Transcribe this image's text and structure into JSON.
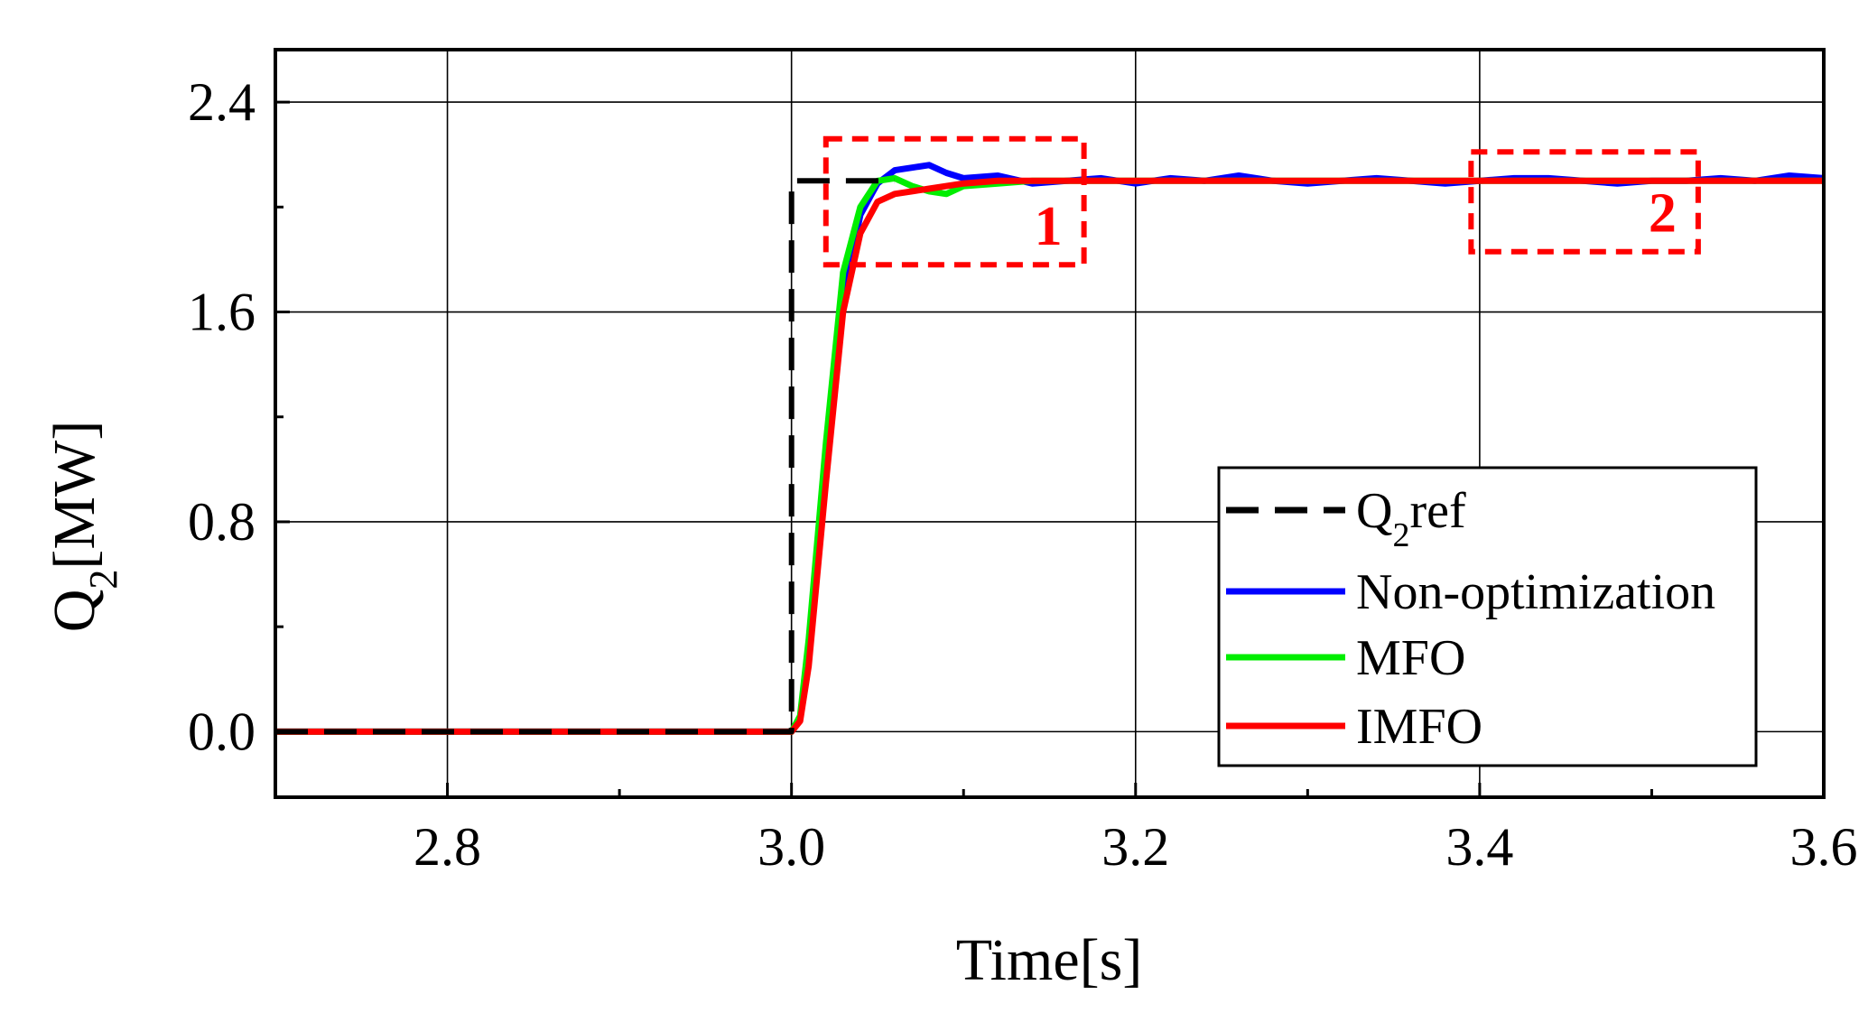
{
  "chart_data": {
    "type": "line",
    "xlabel": "Time[s]",
    "ylabel": {
      "base": "Q",
      "sub": "2",
      "rest": "[MW]"
    },
    "xlim": [
      2.7,
      3.6
    ],
    "ylim": [
      -0.25,
      2.6
    ],
    "xticks": [
      2.8,
      3.0,
      3.2,
      3.4,
      3.6
    ],
    "xtick_labels": [
      "2.8",
      "3.0",
      "3.2",
      "3.4",
      "3.6"
    ],
    "xminor": [
      2.9,
      3.1,
      3.3,
      3.5
    ],
    "yticks": [
      0.0,
      0.8,
      1.6,
      2.4
    ],
    "ytick_labels": [
      "0.0",
      "0.8",
      "1.6",
      "2.4"
    ],
    "yminor": [
      0.4,
      1.2,
      2.0
    ],
    "grid": true,
    "legend_position": "bottom-right",
    "series": [
      {
        "name": "Q2ref",
        "legend": {
          "base": "Q",
          "sub": "2",
          "rest": "ref"
        },
        "color": "#000000",
        "style": "dashed",
        "x": [
          2.7,
          3.0,
          3.0,
          3.06
        ],
        "y": [
          0.0,
          0.0,
          2.1,
          2.1
        ]
      },
      {
        "name": "Non-optimization",
        "legend": {
          "base": "Non-optimization",
          "sub": "",
          "rest": ""
        },
        "color": "#0000ff",
        "style": "solid",
        "x": [
          2.7,
          2.9,
          3.0,
          3.005,
          3.01,
          3.02,
          3.03,
          3.04,
          3.05,
          3.06,
          3.07,
          3.08,
          3.09,
          3.1,
          3.12,
          3.14,
          3.16,
          3.18,
          3.2,
          3.22,
          3.24,
          3.26,
          3.28,
          3.3,
          3.32,
          3.34,
          3.36,
          3.38,
          3.4,
          3.42,
          3.44,
          3.46,
          3.48,
          3.5,
          3.52,
          3.54,
          3.56,
          3.58,
          3.6
        ],
        "y": [
          0.0,
          0.0,
          0.0,
          0.05,
          0.3,
          1.0,
          1.65,
          1.97,
          2.09,
          2.14,
          2.15,
          2.16,
          2.13,
          2.11,
          2.12,
          2.09,
          2.1,
          2.11,
          2.09,
          2.11,
          2.1,
          2.12,
          2.1,
          2.09,
          2.1,
          2.11,
          2.1,
          2.09,
          2.1,
          2.11,
          2.11,
          2.1,
          2.09,
          2.1,
          2.1,
          2.11,
          2.1,
          2.12,
          2.11
        ]
      },
      {
        "name": "MFO",
        "legend": {
          "base": "MFO",
          "sub": "",
          "rest": ""
        },
        "color": "#00ee00",
        "style": "solid",
        "x": [
          2.7,
          2.9,
          3.0,
          3.005,
          3.01,
          3.02,
          3.03,
          3.04,
          3.05,
          3.06,
          3.07,
          3.08,
          3.09,
          3.1,
          3.12,
          3.14,
          3.2,
          3.3,
          3.4,
          3.5,
          3.6
        ],
        "y": [
          0.0,
          0.0,
          0.0,
          0.06,
          0.35,
          1.1,
          1.75,
          2.0,
          2.1,
          2.11,
          2.08,
          2.06,
          2.05,
          2.08,
          2.09,
          2.1,
          2.1,
          2.1,
          2.1,
          2.1,
          2.1
        ]
      },
      {
        "name": "IMFO",
        "legend": {
          "base": "IMFO",
          "sub": "",
          "rest": ""
        },
        "color": "#ff0000",
        "style": "solid",
        "x": [
          2.7,
          2.9,
          3.0,
          3.005,
          3.01,
          3.02,
          3.03,
          3.04,
          3.05,
          3.06,
          3.07,
          3.08,
          3.09,
          3.1,
          3.12,
          3.14,
          3.2,
          3.3,
          3.4,
          3.5,
          3.6
        ],
        "y": [
          0.0,
          0.0,
          0.0,
          0.04,
          0.25,
          0.95,
          1.6,
          1.9,
          2.02,
          2.05,
          2.06,
          2.07,
          2.08,
          2.09,
          2.1,
          2.1,
          2.1,
          2.1,
          2.1,
          2.1,
          2.1
        ]
      }
    ],
    "annotations": [
      {
        "label": "1",
        "color": "#ff0000",
        "x0": 3.02,
        "x1": 3.17,
        "y0": 1.78,
        "y1": 2.26
      },
      {
        "label": "2",
        "color": "#ff0000",
        "x0": 3.395,
        "x1": 3.527,
        "y0": 1.83,
        "y1": 2.21
      }
    ]
  }
}
